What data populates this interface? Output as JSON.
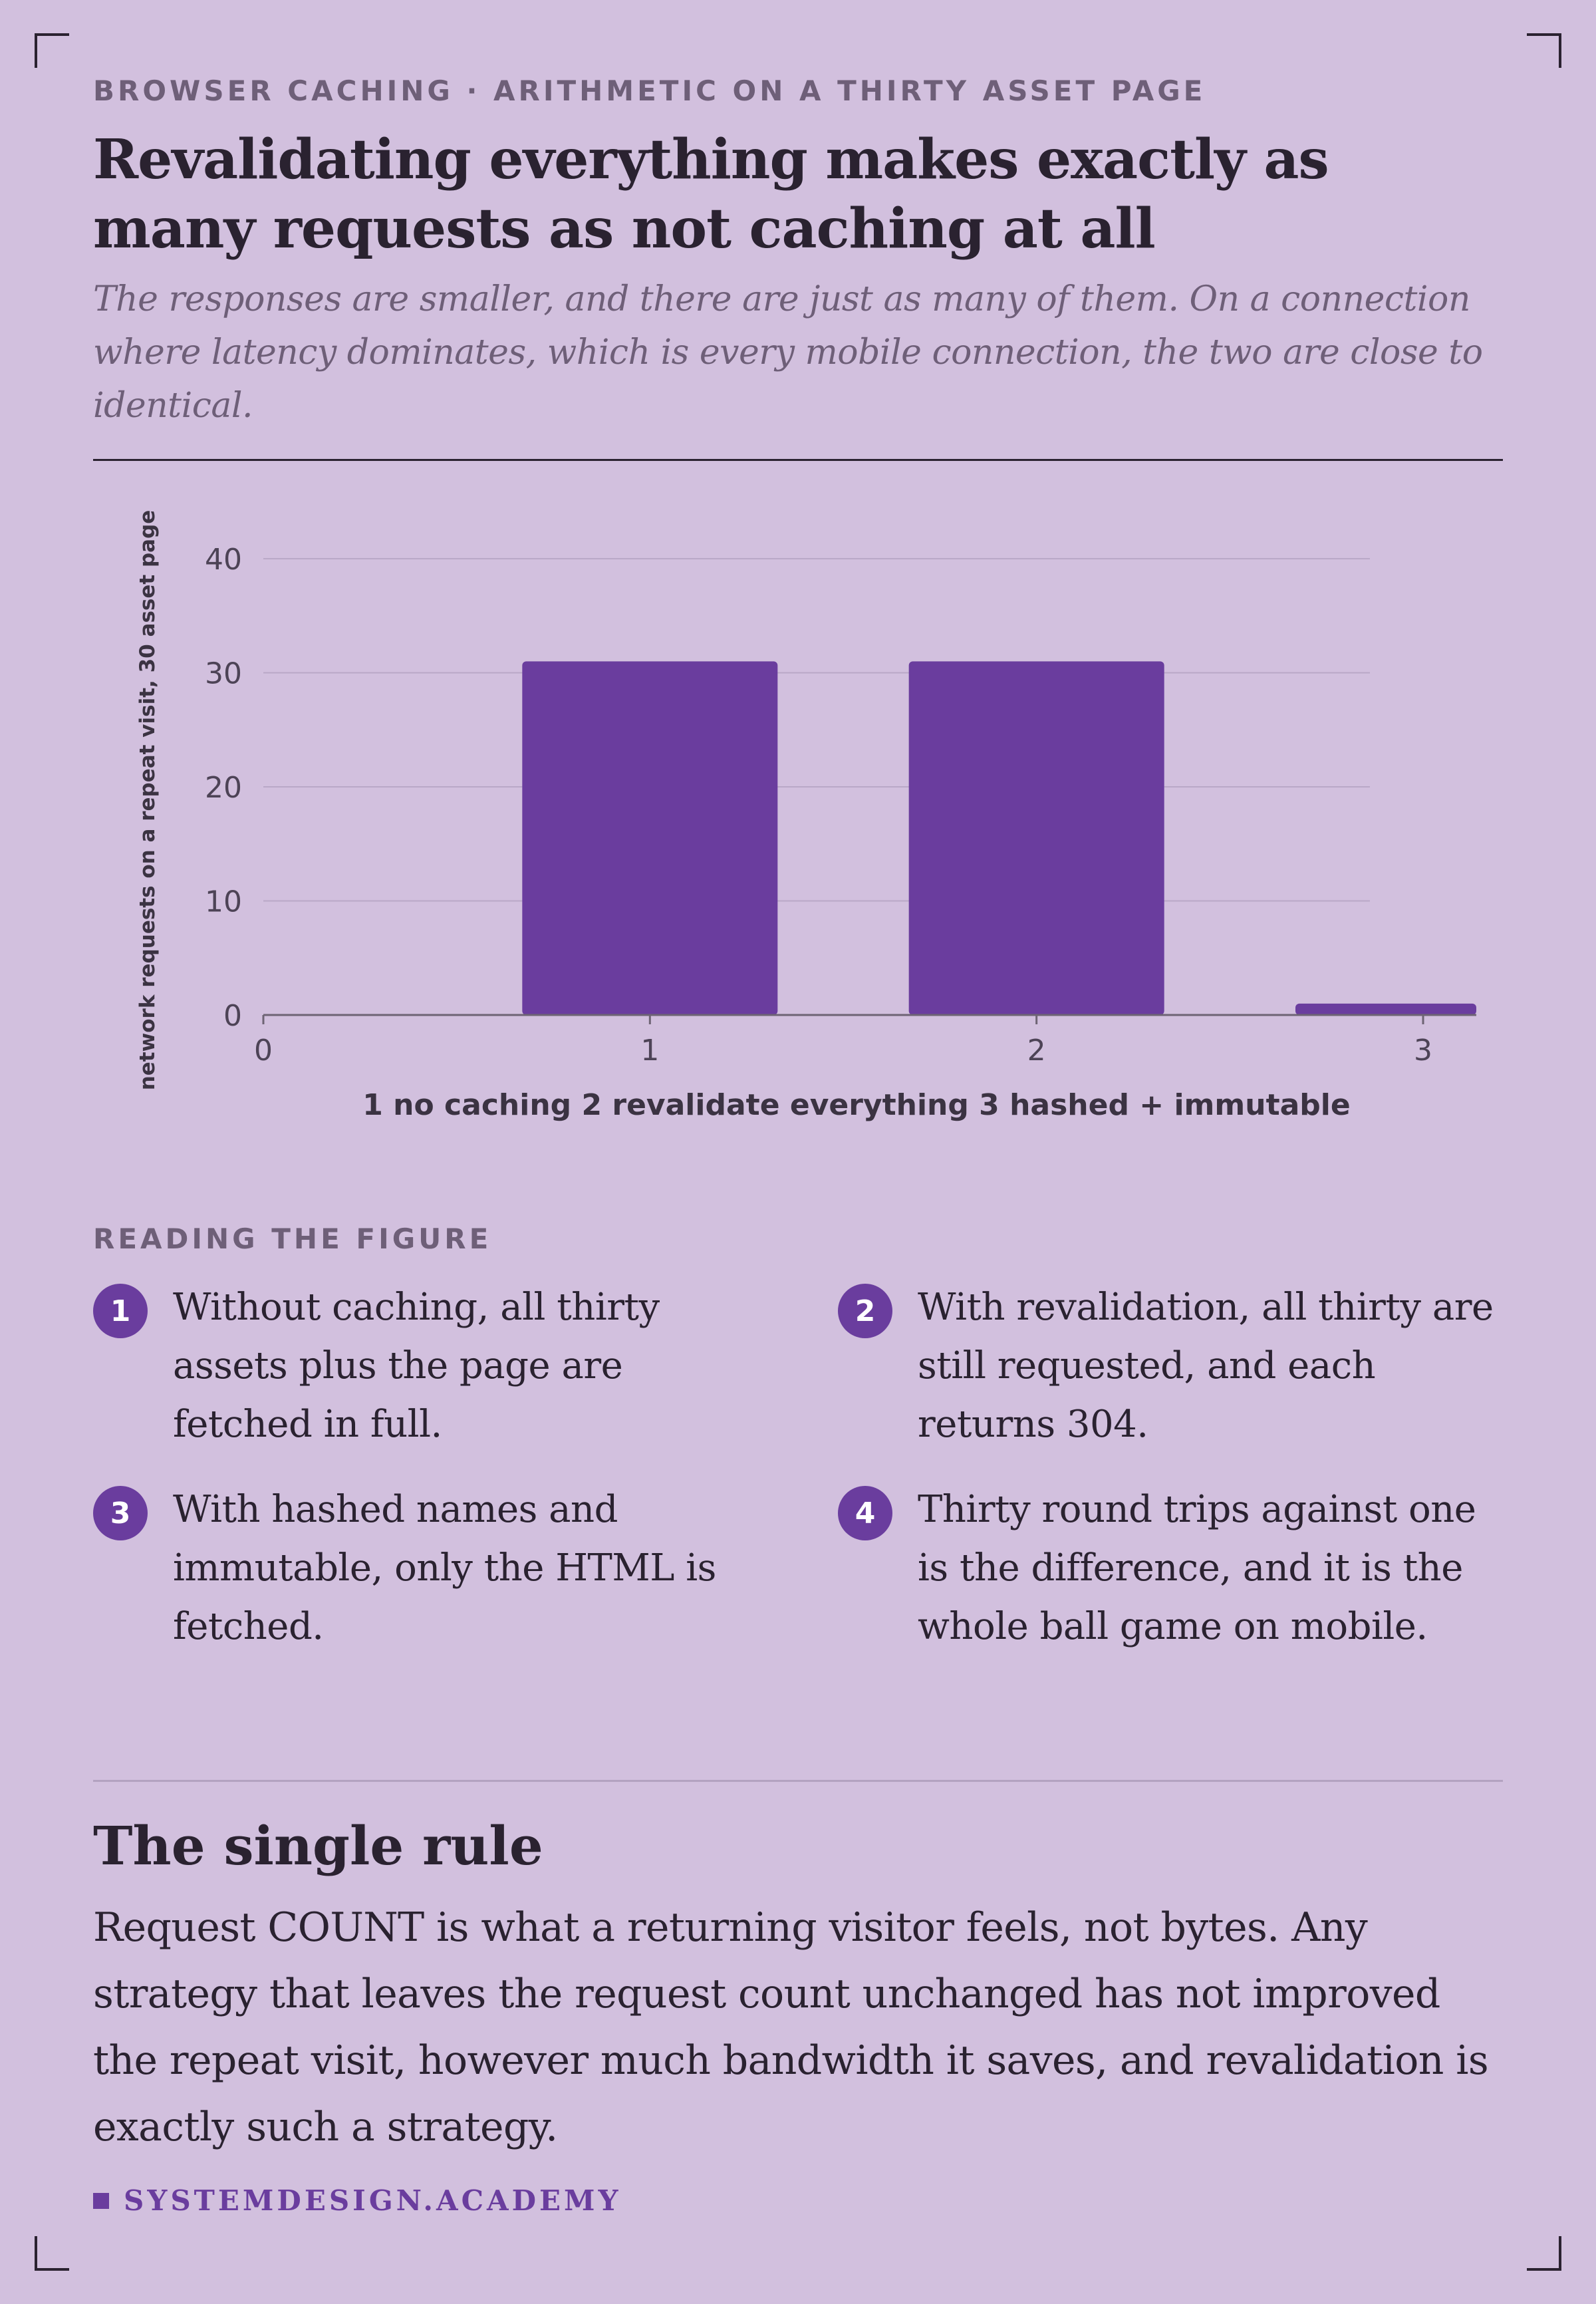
{
  "header": {
    "kicker": "BROWSER CACHING · ARITHMETIC ON A THIRTY ASSET PAGE",
    "title": "Revalidating everything makes exactly as many requests as not caching at all",
    "subtitle": "The responses are smaller, and there are just as many of them. On a connection where latency dominates, which is every mobile connection, the two are close to identical."
  },
  "chart_data": {
    "type": "bar",
    "x": [
      1,
      2,
      3
    ],
    "values": [
      31,
      31,
      1
    ],
    "xticks": [
      "0",
      "1",
      "2",
      "3"
    ],
    "yticks": [
      "0",
      "10",
      "20",
      "30",
      "40"
    ],
    "xlim": [
      0,
      3
    ],
    "ylim": [
      0,
      40
    ],
    "xlabel": "1 no caching 2 revalidate everything 3 hashed + immutable",
    "ylabel": "network requests on a repeat visit, 30 asset page",
    "grid": true,
    "color": "#6a3d9e"
  },
  "reading": {
    "label": "READING THE FIGURE",
    "notes": [
      {
        "num": "1",
        "text": "Without caching, all thirty assets plus the page are fetched in full."
      },
      {
        "num": "2",
        "text": "With revalidation, all thirty are still requested, and each returns 304."
      },
      {
        "num": "3",
        "text": "With hashed names and immutable, only the HTML is fetched."
      },
      {
        "num": "4",
        "text": "Thirty round trips against one is the difference, and it is the whole ball game on mobile."
      }
    ]
  },
  "rule": {
    "title": "The single rule",
    "body": "Request COUNT is what a returning visitor feels, not bytes. Any strategy that leaves the request count unchanged has not improved the repeat visit, however much bandwidth it saves, and revalidation is exactly such a strategy."
  },
  "brand": {
    "name": "SYSTEMDESIGN.ACADEMY"
  }
}
